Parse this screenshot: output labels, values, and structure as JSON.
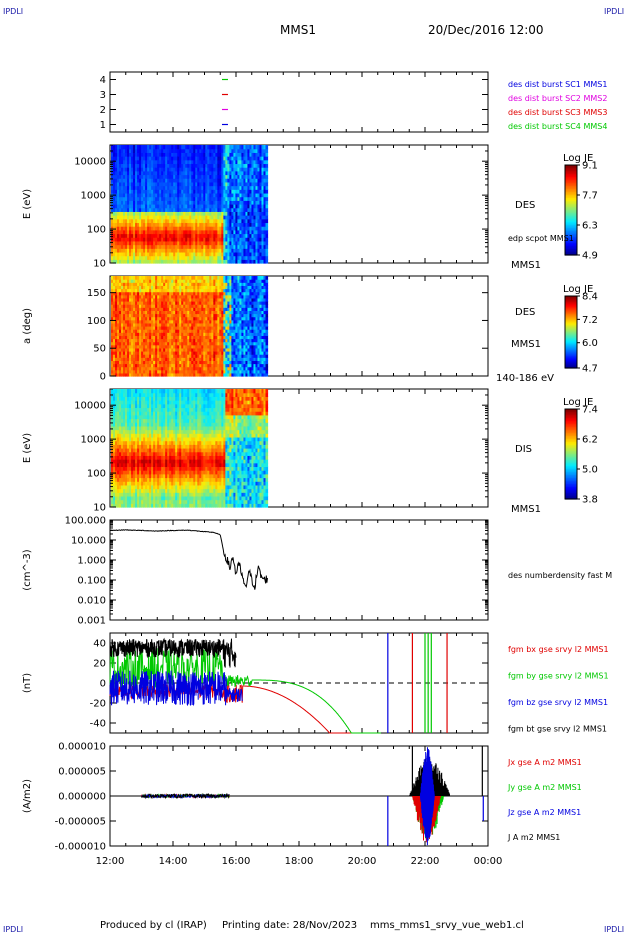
{
  "header": {
    "corner_tl": "IPDLI",
    "corner_tr": "IPDLI",
    "corner_bl": "IPDLI",
    "corner_br": "IPDLI",
    "spacecraft": "MMS1",
    "datetime": "20/Dec/2016 12:00"
  },
  "footer": {
    "produced": "Produced by cl (IRAP)",
    "printing": "Printing date: 28/Nov/2023",
    "file": "mms_mms1_srvy_vue_web1.cl"
  },
  "colors": {
    "red": "#e00000",
    "green": "#00c800",
    "blue": "#0000e0",
    "magenta": "#e000e0",
    "black": "#000000"
  },
  "chart_data": [
    {
      "type": "scatter",
      "name": "burst-availability",
      "ylim": [
        0.5,
        4.5
      ],
      "yticks": [
        "1",
        "2",
        "3",
        "4"
      ],
      "x_range_hours": [
        12,
        24
      ],
      "markers": [
        {
          "y": 4,
          "t_hours": 15.65,
          "color": "#00c800"
        },
        {
          "y": 3,
          "t_hours": 15.65,
          "color": "#e00000"
        },
        {
          "y": 2,
          "t_hours": 15.65,
          "color": "#e000e0"
        },
        {
          "y": 1,
          "t_hours": 15.65,
          "color": "#0000e0"
        }
      ],
      "legend": [
        {
          "label": "des dist burst SC1 MMS1",
          "color": "#0000e0"
        },
        {
          "label": "des dist burst SC2 MMS2",
          "color": "#e000e0"
        },
        {
          "label": "des dist burst SC3 MMS3",
          "color": "#e00000"
        },
        {
          "label": "des dist burst SC4 MMS4",
          "color": "#00c800"
        }
      ]
    },
    {
      "type": "heatmap",
      "name": "des-energy-spectrogram",
      "ylabel": "E (eV)",
      "yscale": "log",
      "ylim": [
        10,
        30000
      ],
      "yticks": [
        "10",
        "100",
        "1000",
        "10000"
      ],
      "data_end_hours": 17.0,
      "colorbar": {
        "title": "Log JE",
        "ticks": [
          "9.1",
          "7.7",
          "6.3",
          "4.9"
        ],
        "min": 4.9,
        "max": 9.1
      },
      "side_labels": [
        "DES",
        "edp scpot MMS1",
        "MMS1"
      ]
    },
    {
      "type": "heatmap",
      "name": "des-pitch-angle",
      "ylabel": "a (deg)",
      "ylim": [
        0,
        180
      ],
      "yticks": [
        "0",
        "50",
        "100",
        "150"
      ],
      "data_end_hours": 17.0,
      "colorbar": {
        "title": "Log JE",
        "ticks": [
          "8.4",
          "7.2",
          "6.0",
          "4.7"
        ],
        "min": 4.7,
        "max": 8.4
      },
      "side_labels": [
        "DES",
        "MMS1",
        "140-186 eV"
      ]
    },
    {
      "type": "heatmap",
      "name": "dis-energy-spectrogram",
      "ylabel": "E (eV)",
      "yscale": "log",
      "ylim": [
        10,
        30000
      ],
      "yticks": [
        "10",
        "100",
        "1000",
        "10000"
      ],
      "data_end_hours": 17.0,
      "colorbar": {
        "title": "Log JE",
        "ticks": [
          "7.4",
          "6.2",
          "5.0",
          "3.8"
        ],
        "min": 3.8,
        "max": 7.4
      },
      "side_labels": [
        "DIS",
        "MMS1"
      ]
    },
    {
      "type": "line",
      "name": "des-density",
      "ylabel": "(cm^-3)",
      "yscale": "log",
      "ylim": [
        0.001,
        100
      ],
      "yticks": [
        "0.001",
        "0.010",
        "0.100",
        "1.000",
        "10.000",
        "100.000"
      ],
      "series": [
        {
          "name": "des numberdensity fast M",
          "color": "#000000",
          "x_hours": [
            12.0,
            12.5,
            13.0,
            13.5,
            14.0,
            14.5,
            15.0,
            15.3,
            15.5,
            15.6,
            15.7,
            15.8,
            15.9,
            16.0,
            16.1,
            16.2,
            16.3,
            16.4,
            16.5,
            16.6,
            16.7,
            16.8,
            16.9,
            17.0
          ],
          "y": [
            30,
            32,
            30,
            28,
            30,
            31,
            26,
            24,
            18,
            3.0,
            1.2,
            0.4,
            1.5,
            0.2,
            0.6,
            0.15,
            0.03,
            0.3,
            0.1,
            0.05,
            0.4,
            0.15,
            0.1,
            0.12
          ]
        }
      ]
    },
    {
      "type": "line",
      "name": "fgm-magnetic-field",
      "ylabel": "(nT)",
      "ylim": [
        -50,
        50
      ],
      "yticks": [
        "-40",
        "-20",
        "0",
        "20",
        "40"
      ],
      "series": [
        {
          "name": "fgm bx gse srvy l2 MMS1",
          "color": "#e00000"
        },
        {
          "name": "fgm by gse srvy l2 MMS1",
          "color": "#00c800"
        },
        {
          "name": "fgm bz gse srvy l2 MMS1",
          "color": "#0000e0"
        },
        {
          "name": "fgm bt gse srvy l2 MMS1",
          "color": "#000000"
        }
      ],
      "spikes_hours": [
        {
          "t": 20.82,
          "color": "#0000e0"
        },
        {
          "t": 21.6,
          "color": "#e00000"
        },
        {
          "t": 22.0,
          "color": "#00c800"
        },
        {
          "t": 22.1,
          "color": "#00c800"
        },
        {
          "t": 22.2,
          "color": "#00c800"
        },
        {
          "t": 22.7,
          "color": "#e00000"
        }
      ]
    },
    {
      "type": "line",
      "name": "current-density",
      "ylabel": "(A/m2)",
      "ylim": [
        -1e-05,
        1e-05
      ],
      "yticks": [
        "-0.000010",
        "-0.000005",
        "0.000000",
        "0.000005",
        "0.000010"
      ],
      "xticks": [
        "12:00",
        "14:00",
        "16:00",
        "18:00",
        "20:00",
        "22:00",
        "00:00"
      ],
      "series": [
        {
          "name": "Jx gse A m2 MMS1",
          "color": "#e00000"
        },
        {
          "name": "Jy gse A m2 MMS1",
          "color": "#00c800"
        },
        {
          "name": "Jz gse A m2 MMS1",
          "color": "#0000e0"
        },
        {
          "name": "J A m2 MMS1",
          "color": "#000000"
        }
      ]
    }
  ]
}
